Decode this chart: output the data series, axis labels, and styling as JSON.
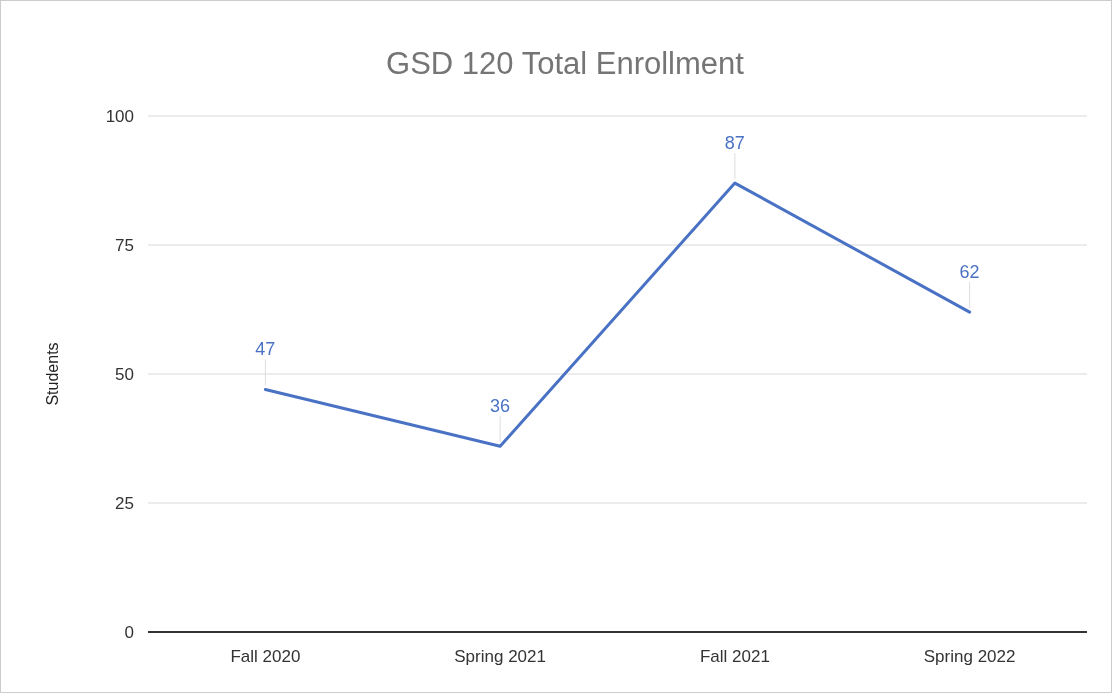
{
  "chart_data": {
    "type": "line",
    "title": "GSD 120 Total Enrollment",
    "ylabel": "Students",
    "categories": [
      "Fall 2020",
      "Spring 2021",
      "Fall 2021",
      "Spring 2022"
    ],
    "series": [
      {
        "color": "#4a72c4",
        "values": [
          47,
          36,
          87,
          62
        ]
      }
    ],
    "ylim": [
      0,
      100
    ],
    "yticks": [
      0,
      25,
      50,
      75,
      100
    ],
    "grid": "y",
    "data_labels": true,
    "marker": "none"
  }
}
